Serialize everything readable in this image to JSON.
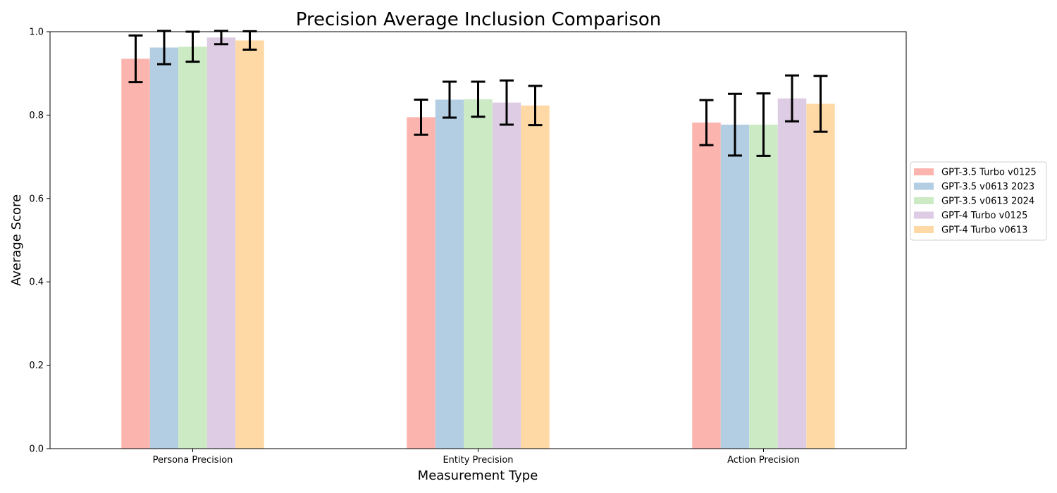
{
  "chart_data": {
    "type": "bar",
    "title": "Precision Average Inclusion Comparison",
    "xlabel": "Measurement Type",
    "ylabel": "Average Score",
    "ylim": [
      0,
      1.0
    ],
    "yticks": [
      0.0,
      0.2,
      0.4,
      0.6,
      0.8,
      1.0
    ],
    "ytick_labels": [
      "0.0",
      "0.2",
      "0.4",
      "0.6",
      "0.8",
      "1.0"
    ],
    "categories": [
      "Persona Precision",
      "Entity Precision",
      "Action Precision"
    ],
    "legend_position": "right",
    "grid": false,
    "series": [
      {
        "name": "GPT-3.5 Turbo v0125",
        "color": "#fbb4ae",
        "values": [
          0.935,
          0.795,
          0.782
        ],
        "errors": [
          0.056,
          0.042,
          0.054
        ]
      },
      {
        "name": "GPT-3.5 v0613 2023",
        "color": "#b3cde3",
        "values": [
          0.962,
          0.837,
          0.777
        ],
        "errors": [
          0.04,
          0.043,
          0.074
        ]
      },
      {
        "name": "GPT-3.5 v0613 2024",
        "color": "#ccebc5",
        "values": [
          0.964,
          0.838,
          0.777
        ],
        "errors": [
          0.036,
          0.042,
          0.075
        ]
      },
      {
        "name": "GPT-4 Turbo v0125",
        "color": "#decbe4",
        "values": [
          0.986,
          0.83,
          0.84
        ],
        "errors": [
          0.016,
          0.053,
          0.055
        ]
      },
      {
        "name": "GPT-4 Turbo v0613",
        "color": "#fed9a6",
        "values": [
          0.979,
          0.823,
          0.827
        ],
        "errors": [
          0.022,
          0.047,
          0.067
        ]
      }
    ]
  }
}
